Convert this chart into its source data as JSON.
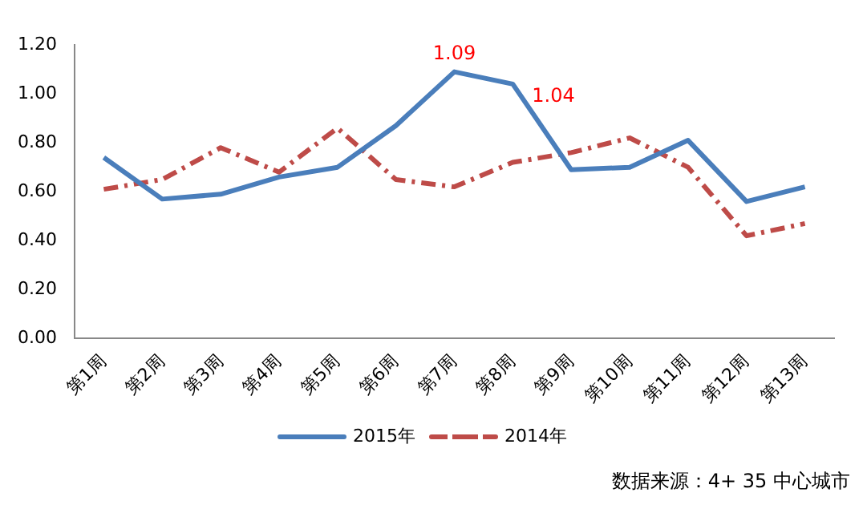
{
  "chart_data": {
    "type": "line",
    "categories": [
      "第1周",
      "第2周",
      "第3周",
      "第4周",
      "第5周",
      "第6周",
      "第7周",
      "第8周",
      "第9周",
      "第10周",
      "第11周",
      "第12周",
      "第13周"
    ],
    "series": [
      {
        "name": "2015年",
        "color": "#4a7ebb",
        "line_style": "solid",
        "values": [
          0.74,
          0.57,
          0.59,
          0.66,
          0.7,
          0.87,
          1.09,
          1.04,
          0.69,
          0.7,
          0.81,
          0.56,
          0.62
        ],
        "value_labels": [
          null,
          null,
          null,
          null,
          null,
          null,
          "1.09",
          "1.04",
          null,
          null,
          null,
          null,
          null
        ]
      },
      {
        "name": "2014年",
        "color": "#be4b48",
        "line_style": "dashed",
        "values": [
          0.61,
          0.65,
          0.78,
          0.68,
          0.86,
          0.65,
          0.62,
          0.72,
          0.76,
          0.82,
          0.7,
          0.42,
          0.47
        ]
      }
    ],
    "ylim": [
      0,
      1.2
    ],
    "yticks": [
      {
        "value": 0,
        "label": "0.00"
      },
      {
        "value": 0.2,
        "label": "0.20"
      },
      {
        "value": 0.4,
        "label": "0.40"
      },
      {
        "value": 0.6,
        "label": "0.60"
      },
      {
        "value": 0.8,
        "label": "0.80"
      },
      {
        "value": 1.0,
        "label": "1.00"
      },
      {
        "value": 1.2,
        "label": "1.20"
      }
    ],
    "grid": false,
    "legend": "bottom",
    "marker": "none",
    "annotations": [
      "数据来源：4+ 35 中心城市"
    ]
  }
}
